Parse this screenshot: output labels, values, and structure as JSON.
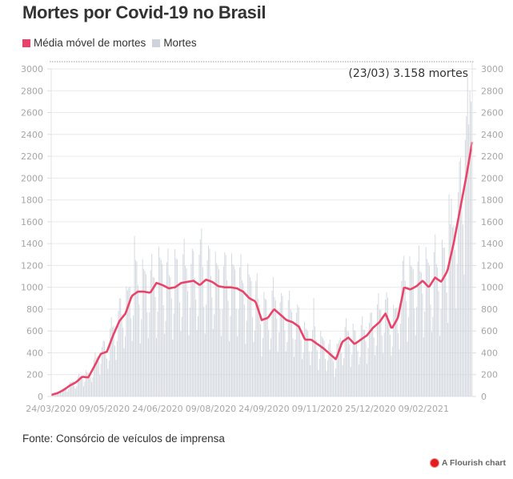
{
  "header": {
    "title": "Mortes por Covid-19 no Brasil"
  },
  "legend": [
    {
      "label": "Média móvel de mortes",
      "color": "#e8446a",
      "icon": "square-swatch"
    },
    {
      "label": "Mortes",
      "color": "#ced4da",
      "icon": "square-swatch"
    }
  ],
  "footer": {
    "source": "Fonte: Consórcio de veículos de imprensa",
    "credit": "A Flourish chart",
    "credit_icon": "flourish-logo-icon"
  },
  "chart_data": {
    "type": "bar+line",
    "title": "Mortes por Covid-19 no Brasil",
    "xlabel": "",
    "ylabel": "",
    "ylim": [
      0,
      3000
    ],
    "yticks": [
      0,
      200,
      400,
      600,
      800,
      1000,
      1200,
      1400,
      1600,
      1800,
      2000,
      2200,
      2400,
      2600,
      2800,
      3000
    ],
    "ytick_labels": [
      "0",
      "200",
      "400",
      "600",
      "800",
      "1000",
      "1200",
      "1400",
      "1600",
      "1800",
      "2000",
      "2200",
      "2400",
      "2600",
      "2800",
      "3000"
    ],
    "y_axis_both_sides": true,
    "grid": true,
    "legend_position": "top-left",
    "x_start": "24/03/2020",
    "x_end": "23/03/2021",
    "num_days": 365,
    "xticks": [
      {
        "label": "24/03/2020",
        "day": 0
      },
      {
        "label": "09/05/2020",
        "day": 46
      },
      {
        "label": "24/06/2020",
        "day": 92
      },
      {
        "label": "09/08/2020",
        "day": 138
      },
      {
        "label": "24/09/2020",
        "day": 184
      },
      {
        "label": "09/11/2020",
        "day": 230
      },
      {
        "label": "25/12/2020",
        "day": 276
      },
      {
        "label": "09/02/2021",
        "day": 322
      }
    ],
    "annotation": {
      "text": "(23/03) 3.158 mortes",
      "value": 3158,
      "date": "23/03",
      "position": "top-right"
    },
    "series": [
      {
        "name": "Média móvel de mortes",
        "kind": "line",
        "color": "#e8446a",
        "sample_every_days": 7,
        "values": [
          15,
          30,
          60,
          100,
          130,
          180,
          175,
          280,
          390,
          410,
          560,
          690,
          760,
          920,
          960,
          960,
          950,
          1040,
          1020,
          990,
          1000,
          1040,
          1050,
          1060,
          1020,
          1070,
          1050,
          1010,
          1000,
          1000,
          990,
          960,
          900,
          870,
          700,
          720,
          800,
          750,
          700,
          680,
          640,
          520,
          520,
          480,
          440,
          390,
          340,
          500,
          540,
          480,
          520,
          560,
          630,
          680,
          760,
          620,
          720,
          1000,
          980,
          1010,
          1060,
          1000,
          1090,
          1050,
          1150,
          1400,
          1700,
          2000,
          2330
        ]
      },
      {
        "name": "Mortes",
        "kind": "bar",
        "color": "#ced4da",
        "weekly_pattern_factors": [
          0.55,
          0.75,
          1.25,
          1.3,
          1.2,
          1.1,
          0.85
        ],
        "peak_days": [
          {
            "day": 72,
            "value": 1470
          },
          {
            "day": 130,
            "value": 1540
          },
          {
            "day": 227,
            "value": 900
          },
          {
            "day": 344,
            "value": 1850
          },
          {
            "day": 358,
            "value": 2350
          },
          {
            "day": 362,
            "value": 2800
          },
          {
            "day": 363,
            "value": 2700
          },
          {
            "day": 364,
            "value": 3158
          }
        ]
      }
    ]
  }
}
